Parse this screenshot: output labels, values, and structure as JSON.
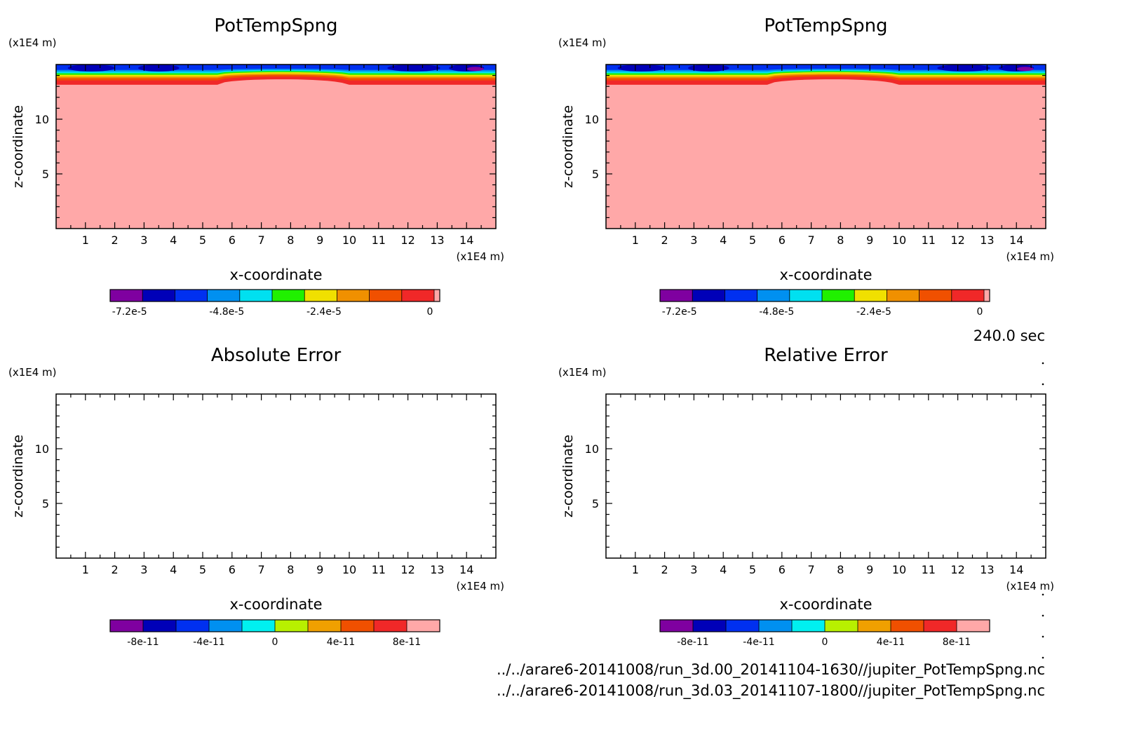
{
  "colors": {
    "pot_levels": [
      "#7f00a0",
      "#0000b8",
      "#0030f0",
      "#0090f0",
      "#00e0f0",
      "#20f000",
      "#f0e000",
      "#f09000",
      "#f05000",
      "#f02828",
      "#ffa8a8"
    ],
    "err_levels": [
      "#7f00a0",
      "#0000b8",
      "#0030f0",
      "#0090f0",
      "#00f0f0",
      "#b8f000",
      "#f0a000",
      "#f05000",
      "#f02828",
      "#ffa8a8"
    ]
  },
  "annotations": {
    "time": "240.0 sec",
    "file1": "../../arare6-20141008/run_3d.00_20141104-1630//jupiter_PotTempSpng.nc",
    "file2": "../../arare6-20141008/run_3d.03_20141107-1800//jupiter_PotTempSpng.nc"
  },
  "chart_data": [
    {
      "type": "heatmap",
      "title": "PotTempSpng",
      "xlabel": "x-coordinate",
      "ylabel": "z-coordinate",
      "x_unit": "(x1E4 m)",
      "y_unit": "(x1E4 m)",
      "xlim": [
        0,
        15
      ],
      "ylim": [
        0,
        15
      ],
      "x_ticks": [
        1,
        2,
        3,
        4,
        5,
        6,
        7,
        8,
        9,
        10,
        11,
        12,
        13,
        14
      ],
      "y_ticks": [
        5,
        10
      ],
      "colorbar": {
        "ticks": [
          "-7.2e-5",
          "-4.8e-5",
          "-2.4e-5",
          "0"
        ],
        "levels": 11
      }
    },
    {
      "type": "heatmap",
      "title": "PotTempSpng",
      "xlabel": "x-coordinate",
      "ylabel": "z-coordinate",
      "x_unit": "(x1E4 m)",
      "y_unit": "(x1E4 m)",
      "xlim": [
        0,
        15
      ],
      "ylim": [
        0,
        15
      ],
      "x_ticks": [
        1,
        2,
        3,
        4,
        5,
        6,
        7,
        8,
        9,
        10,
        11,
        12,
        13,
        14
      ],
      "y_ticks": [
        5,
        10
      ],
      "colorbar": {
        "ticks": [
          "-7.2e-5",
          "-4.8e-5",
          "-2.4e-5",
          "0"
        ],
        "levels": 11
      }
    },
    {
      "type": "heatmap",
      "title": "Absolute Error",
      "xlabel": "x-coordinate",
      "ylabel": "z-coordinate",
      "x_unit": "(x1E4 m)",
      "y_unit": "(x1E4 m)",
      "xlim": [
        0,
        15
      ],
      "ylim": [
        0,
        15
      ],
      "x_ticks": [
        1,
        2,
        3,
        4,
        5,
        6,
        7,
        8,
        9,
        10,
        11,
        12,
        13,
        14
      ],
      "y_ticks": [
        5,
        10
      ],
      "colorbar": {
        "ticks": [
          "-8e-11",
          "-4e-11",
          "0",
          "4e-11",
          "8e-11"
        ],
        "levels": 10
      }
    },
    {
      "type": "heatmap",
      "title": "Relative Error",
      "xlabel": "x-coordinate",
      "ylabel": "z-coordinate",
      "x_unit": "(x1E4 m)",
      "y_unit": "(x1E4 m)",
      "xlim": [
        0,
        15
      ],
      "ylim": [
        0,
        15
      ],
      "x_ticks": [
        1,
        2,
        3,
        4,
        5,
        6,
        7,
        8,
        9,
        10,
        11,
        12,
        13,
        14
      ],
      "y_ticks": [
        5,
        10
      ],
      "colorbar": {
        "ticks": [
          "-8e-11",
          "-4e-11",
          "0",
          "4e-11",
          "8e-11"
        ],
        "levels": 10
      }
    }
  ]
}
